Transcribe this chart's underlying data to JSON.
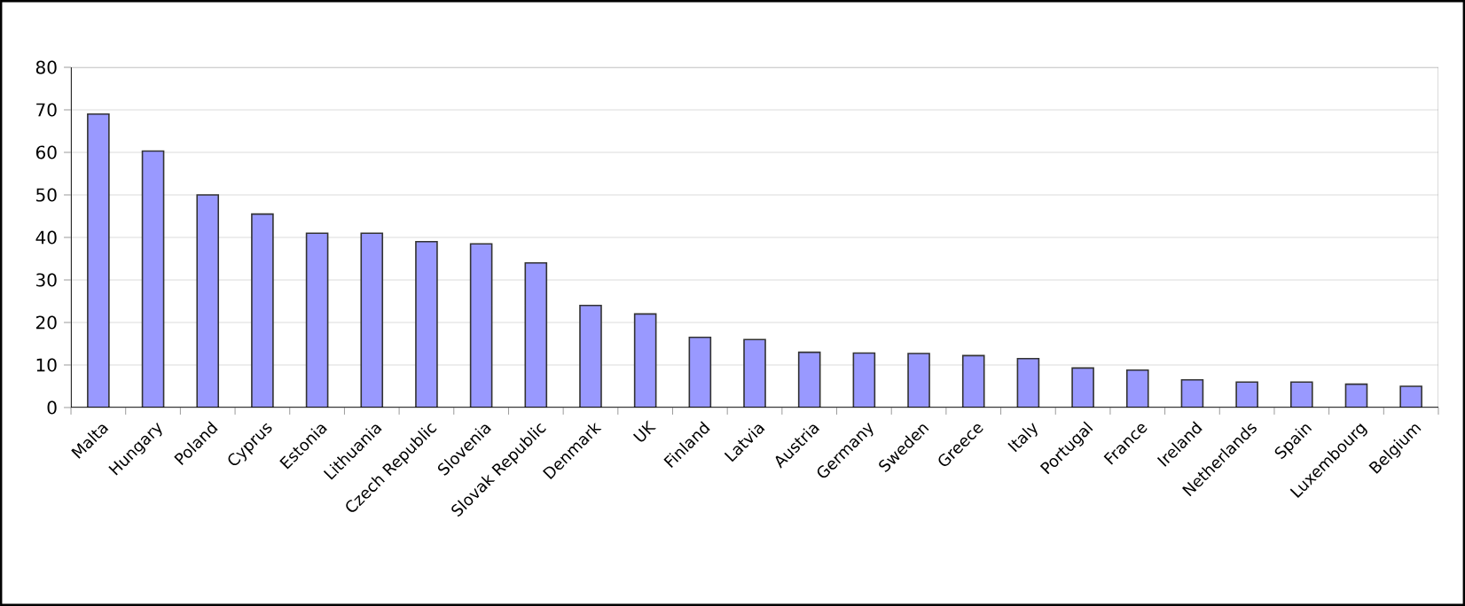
{
  "chart_data": {
    "type": "bar",
    "categories": [
      "Malta",
      "Hungary",
      "Poland",
      "Cyprus",
      "Estonia",
      "Lithuania",
      "Czech Republic",
      "Slovenia",
      "Slovak Republic",
      "Denmark",
      "UK",
      "Finland",
      "Latvia",
      "Austria",
      "Germany",
      "Sweden",
      "Greece",
      "Italy",
      "Portugal",
      "France",
      "Ireland",
      "Netherlands",
      "Spain",
      "Luxembourg",
      "Belgium"
    ],
    "values": [
      69,
      60.3,
      50,
      45.5,
      41,
      41,
      39,
      38.5,
      34,
      24,
      22,
      16.5,
      16,
      13,
      12.8,
      12.7,
      12.2,
      11.5,
      9.3,
      8.8,
      6.5,
      6,
      6,
      5.5,
      5
    ],
    "color": "#9999ff",
    "ylim": [
      0,
      80
    ],
    "yticks": [
      0,
      10,
      20,
      30,
      40,
      50,
      60,
      70,
      80
    ],
    "grid": "y"
  }
}
